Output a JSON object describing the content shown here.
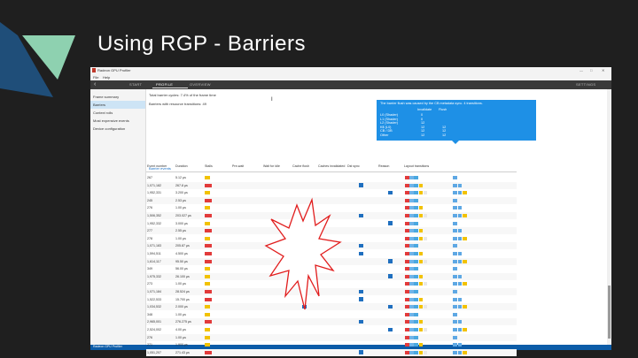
{
  "slide": {
    "title": "Using RGP - Barriers",
    "colors": {
      "background": "#1f1f1f",
      "accent_blue": "#1f4e79",
      "accent_green": "#8ed1b0",
      "starburst": "#e11d1d"
    }
  },
  "window": {
    "title": "Radeon GPU Profiler",
    "menu": [
      "File",
      "Help"
    ],
    "controls": [
      "—",
      "□",
      "✕"
    ],
    "tabs": {
      "start": "START",
      "profile": "PROFILE",
      "overview": "OVERVIEW",
      "settings": "SETTINGS",
      "active": "profile"
    },
    "back_icon": "back-arrow-icon"
  },
  "sidebar": {
    "items": [
      {
        "label": "Frame summary",
        "selected": false
      },
      {
        "label": "Barriers",
        "selected": true
      },
      {
        "label": "Context rolls",
        "selected": false
      },
      {
        "label": "Most expensive events",
        "selected": false
      },
      {
        "label": "Device configuration",
        "selected": false
      }
    ]
  },
  "main": {
    "summary_line1": "Total barrier cycles: 7.4% of the frame time",
    "summary_line2": "Barriers with resource transitions: 49",
    "section_title": "Barrier events",
    "cursor_icon": "text-cursor-icon"
  },
  "tooltip": {
    "line1": "The barrier flush was caused by the CB metadata sync. 4 transitions.",
    "col_headers": [
      "Invalidate",
      "Flush"
    ],
    "rows": [
      {
        "label": "L0 (Shader)",
        "a": "0",
        "b": ""
      },
      {
        "label": "L1 (Shader)",
        "a": "0",
        "b": ""
      },
      {
        "label": "L2 (Shader)",
        "a": "12",
        "b": ""
      },
      {
        "label": "K$ (L0)",
        "a": "12",
        "b": "12"
      },
      {
        "label": "CB / DB",
        "a": "12",
        "b": "12"
      },
      {
        "label": "Other",
        "a": "12",
        "b": "12"
      }
    ]
  },
  "table": {
    "headers": [
      "Event number",
      "Duration",
      "Stalls",
      "Pre-wait",
      "Wait for idle",
      "Cache flush",
      "Caches invalidated",
      "Dst sync",
      "Reason",
      "Layout transitions"
    ],
    "rows": [
      {
        "event": "267",
        "duration": "5.12 μs",
        "stall": "yellow",
        "check1": false,
        "check2": false,
        "check3": false
      },
      {
        "event": "1,071,182",
        "duration": "267.8 μs",
        "stall": "red",
        "check1": false,
        "check2": true,
        "check3": false
      },
      {
        "event": "1,952,331",
        "duration": "3.200 μs",
        "stall": "yellow",
        "check1": false,
        "check2": false,
        "check3": true
      },
      {
        "event": "245",
        "duration": "2.53 μs",
        "stall": "red",
        "check1": false,
        "check2": false,
        "check3": false
      },
      {
        "event": "276",
        "duration": "1.00 μs",
        "stall": "yellow",
        "check1": false,
        "check2": false,
        "check3": false
      },
      {
        "event": "1,506,352",
        "duration": "203.027 μs",
        "stall": "red",
        "check1": false,
        "check2": true,
        "check3": false
      },
      {
        "event": "1,952,332",
        "duration": "3.000 μs",
        "stall": "yellow",
        "check1": false,
        "check2": false,
        "check3": true
      },
      {
        "event": "277",
        "duration": "2.55 μs",
        "stall": "red",
        "check1": false,
        "check2": false,
        "check3": false
      },
      {
        "event": "278",
        "duration": "1.00 μs",
        "stall": "yellow",
        "check1": false,
        "check2": false,
        "check3": false
      },
      {
        "event": "1,071,183",
        "duration": "205.87 μs",
        "stall": "red",
        "check1": false,
        "check2": true,
        "check3": false
      },
      {
        "event": "1,594,511",
        "duration": "4.500 μs",
        "stall": "red",
        "check1": true,
        "check2": true,
        "check3": false
      },
      {
        "event": "1,614,117",
        "duration": "95.50 μs",
        "stall": "red",
        "check1": false,
        "check2": false,
        "check3": true
      },
      {
        "event": "349",
        "duration": "56.00 μs",
        "stall": "yellow",
        "check1": false,
        "check2": false,
        "check3": false
      },
      {
        "event": "1,975,332",
        "duration": "26.100 μs",
        "stall": "yellow",
        "check1": false,
        "check2": false,
        "check3": true
      },
      {
        "event": "273",
        "duration": "1.00 μs",
        "stall": "yellow",
        "check1": false,
        "check2": false,
        "check3": false
      },
      {
        "event": "1,071,184",
        "duration": "28.524 μs",
        "stall": "red",
        "check1": false,
        "check2": true,
        "check3": false
      },
      {
        "event": "1,522,533",
        "duration": "15.700 μs",
        "stall": "red",
        "check1": false,
        "check2": true,
        "check3": false
      },
      {
        "event": "1,034,532",
        "duration": "2.000 μs",
        "stall": "yellow",
        "check1": true,
        "check2": false,
        "check3": true
      },
      {
        "event": "348",
        "duration": "1.00 μs",
        "stall": "yellow",
        "check1": false,
        "check2": false,
        "check3": false
      },
      {
        "event": "2,965,001",
        "duration": "276.275 μs",
        "stall": "red",
        "check1": false,
        "check2": true,
        "check3": false
      },
      {
        "event": "2,524,002",
        "duration": "4.00 μs",
        "stall": "yellow",
        "check1": false,
        "check2": false,
        "check3": true
      },
      {
        "event": "276",
        "duration": "1.00 μs",
        "stall": "yellow",
        "check1": false,
        "check2": false,
        "check3": false
      },
      {
        "event": "271",
        "duration": "1.900 μs",
        "stall": "yellow",
        "check1": false,
        "check2": false,
        "check3": false
      },
      {
        "event": "1,051,207",
        "duration": "271.43 μs",
        "stall": "red",
        "check1": false,
        "check2": true,
        "check3": false
      }
    ]
  },
  "statusbar": {
    "text": "Radeon GPU Profiler"
  },
  "annotation": {
    "shape": "starburst",
    "color": "#e11d1d"
  }
}
